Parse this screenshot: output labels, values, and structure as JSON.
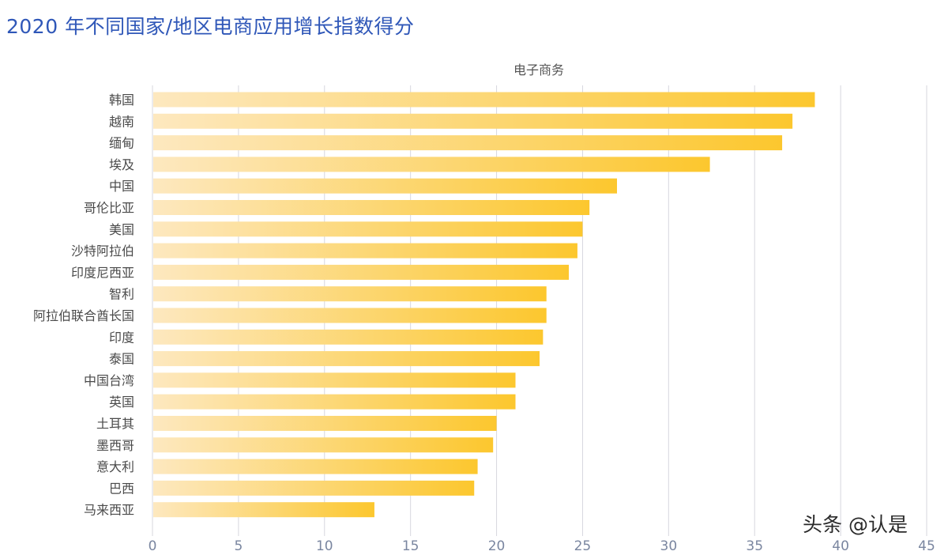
{
  "page_title": "2020 年不同国家/地区电商应用增长指数得分",
  "watermark": "头条 @认是",
  "colors": {
    "title": "#2f57b8",
    "bar_light": "#fde8bf",
    "bar_dark": "#fcc72e",
    "grid": "#d7d7de",
    "label": "#4a4a4a",
    "tick": "#7a86a0"
  },
  "chart_data": {
    "type": "bar",
    "orientation": "horizontal",
    "title": "电子商务",
    "xlim": [
      0,
      45
    ],
    "xticks": [
      0,
      5,
      10,
      15,
      20,
      25,
      30,
      35,
      40,
      45
    ],
    "grid": "vertical",
    "categories": [
      "韩国",
      "越南",
      "缅甸",
      "埃及",
      "中国",
      "哥伦比亚",
      "美国",
      "沙特阿拉伯",
      "印度尼西亚",
      "智利",
      "阿拉伯联合酋长国",
      "印度",
      "泰国",
      "中国台湾",
      "英国",
      "土耳其",
      "墨西哥",
      "意大利",
      "巴西",
      "马来西亚"
    ],
    "values": [
      38.5,
      37.2,
      36.6,
      32.4,
      27.0,
      25.4,
      25.0,
      24.7,
      24.2,
      22.9,
      22.9,
      22.7,
      22.5,
      21.1,
      21.1,
      20.0,
      19.8,
      18.9,
      18.7,
      12.9
    ]
  }
}
